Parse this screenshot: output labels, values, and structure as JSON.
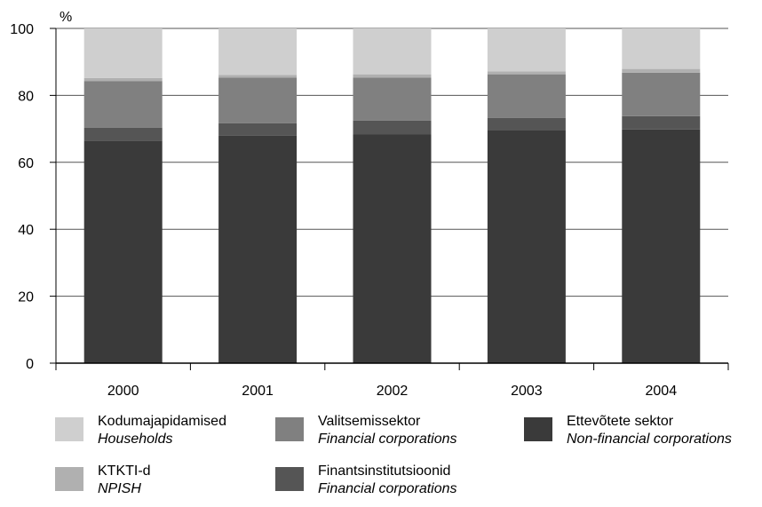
{
  "chart_data": {
    "type": "bar",
    "stacked": true,
    "unit_label": "%",
    "categories": [
      "2000",
      "2001",
      "2002",
      "2003",
      "2004"
    ],
    "ylim": [
      0,
      100
    ],
    "yticks": [
      0,
      20,
      40,
      60,
      80,
      100
    ],
    "grid": "horizontal",
    "series": [
      {
        "name": "Ettevõtete sektor",
        "name_en": "Non-financial corporations",
        "color": "#3a3a3a",
        "values": [
          66.5,
          68.0,
          68.3,
          69.5,
          69.8
        ]
      },
      {
        "name": "Finantsinstitutsioonid",
        "name_en": "Financial corporations",
        "color": "#555555",
        "values": [
          3.8,
          3.7,
          4.2,
          3.8,
          4.0
        ]
      },
      {
        "name": "Valitsemissektor",
        "name_en": "Financial corporations",
        "color": "#808080",
        "values": [
          14.0,
          13.6,
          12.8,
          13.0,
          13.0
        ]
      },
      {
        "name": "KTKTI-d",
        "name_en": "NPISH",
        "color": "#b0b0b0",
        "values": [
          0.9,
          0.8,
          1.0,
          0.9,
          1.1
        ]
      },
      {
        "name": "Kodumajapidamised",
        "name_en": "Households",
        "color": "#cfcfcf",
        "values": [
          14.8,
          13.9,
          13.7,
          12.8,
          12.1
        ]
      }
    ]
  },
  "legend": [
    {
      "name": "Kodumajapidamised",
      "name_en": "Households",
      "color": "#cfcfcf"
    },
    {
      "name": "Valitsemissektor",
      "name_en": "Financial corporations",
      "color": "#808080"
    },
    {
      "name": "Ettevõtete sektor",
      "name_en": "Non-financial corporations",
      "color": "#3a3a3a"
    },
    {
      "name": "KTKTI-d",
      "name_en": "NPISH",
      "color": "#b0b0b0"
    },
    {
      "name": "Finantsinstitutsioonid",
      "name_en": "Financial corporations",
      "color": "#555555"
    }
  ]
}
